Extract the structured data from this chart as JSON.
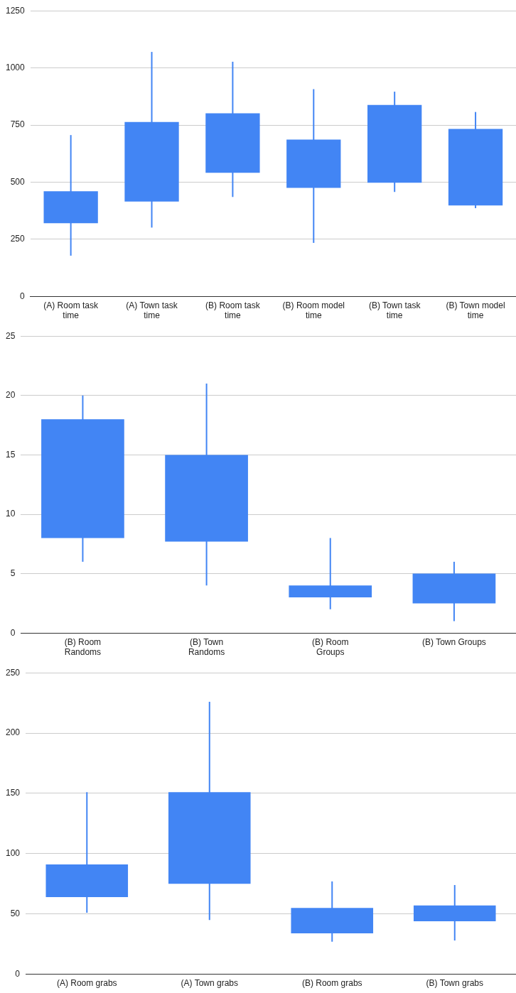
{
  "chart_data": [
    {
      "type": "candlestick",
      "categories": [
        "(A) Room task time",
        "(A) Town task time",
        "(B) Room task time",
        "(B) Room model time",
        "(B) Town task time",
        "(B) Town model time"
      ],
      "color": "#4285f4",
      "ylim": [
        0,
        1250
      ],
      "yticks": [
        0,
        250,
        500,
        750,
        1000,
        1250
      ],
      "grid": "y",
      "ohlc": [
        [
          320,
          706,
          178,
          460
        ],
        [
          415,
          1070,
          301,
          763
        ],
        [
          541,
          1027,
          435,
          801
        ],
        [
          475,
          907,
          234,
          686
        ],
        [
          497,
          896,
          457,
          838
        ],
        [
          398,
          807,
          386,
          733
        ]
      ]
    },
    {
      "type": "candlestick",
      "categories": [
        "(B) Room Randoms",
        "(B) Town Randoms",
        "(B) Room Groups",
        "(B) Town Groups"
      ],
      "color": "#4285f4",
      "ylim": [
        0,
        25
      ],
      "yticks": [
        0,
        5,
        10,
        15,
        20,
        25
      ],
      "grid": "y",
      "ohlc": [
        [
          8,
          20,
          6,
          18
        ],
        [
          7.7,
          21,
          4,
          15
        ],
        [
          3,
          8,
          2,
          4
        ],
        [
          2.5,
          6,
          1,
          5
        ]
      ]
    },
    {
      "type": "candlestick",
      "categories": [
        "(A) Room grabs",
        "(A) Town grabs",
        "(B) Room grabs",
        "(B) Town grabs"
      ],
      "color": "#4285f4",
      "ylim": [
        0,
        250
      ],
      "yticks": [
        0,
        50,
        100,
        150,
        200,
        250
      ],
      "grid": "y",
      "ohlc": [
        [
          64,
          151,
          51,
          91
        ],
        [
          75,
          226,
          45,
          151
        ],
        [
          34,
          77,
          27,
          55
        ],
        [
          44,
          74,
          28,
          57
        ]
      ]
    }
  ]
}
